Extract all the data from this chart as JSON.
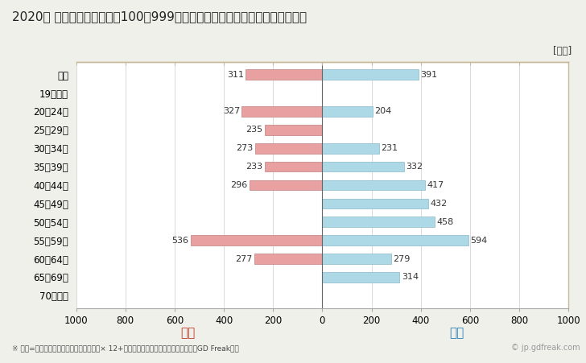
{
  "title": "2020年 民間企業（従業者数100～999人）フルタイム労働者の男女別平均年収",
  "ylabel_unit": "[万円]",
  "footnote": "※ 年収=「きまって支給する現金給与額」× 12+「年間賞与その他特別給与額」としてGD Freak推計",
  "watermark": "© jp.gdfreak.com",
  "categories": [
    "全体",
    "19歳以下",
    "20～24歳",
    "25～29歳",
    "30～34歳",
    "35～39歳",
    "40～44歳",
    "45～49歳",
    "50～54歳",
    "55～59歳",
    "60～64歳",
    "65～69歳",
    "70歳以上"
  ],
  "female_values": [
    311,
    0,
    327,
    235,
    273,
    233,
    296,
    0,
    0,
    536,
    277,
    0,
    0
  ],
  "male_values": [
    391,
    0,
    204,
    0,
    231,
    332,
    417,
    432,
    458,
    594,
    279,
    314,
    0
  ],
  "female_color": "#e8a0a0",
  "male_color": "#add8e6",
  "female_label": "女性",
  "male_label": "男性",
  "female_label_color": "#c0392b",
  "male_label_color": "#2980b9",
  "xlim": [
    -1000,
    1000
  ],
  "xticks": [
    -1000,
    -800,
    -600,
    -400,
    -200,
    0,
    200,
    400,
    600,
    800,
    1000
  ],
  "xtick_labels": [
    "1000",
    "800",
    "600",
    "400",
    "200",
    "0",
    "200",
    "400",
    "600",
    "800",
    "1000"
  ],
  "background_color": "#f0f0eb",
  "plot_bg_color": "#ffffff",
  "bar_height": 0.55,
  "title_fontsize": 11,
  "tick_fontsize": 8.5,
  "label_fontsize": 9,
  "annotation_fontsize": 8,
  "border_color": "#c8b89a"
}
